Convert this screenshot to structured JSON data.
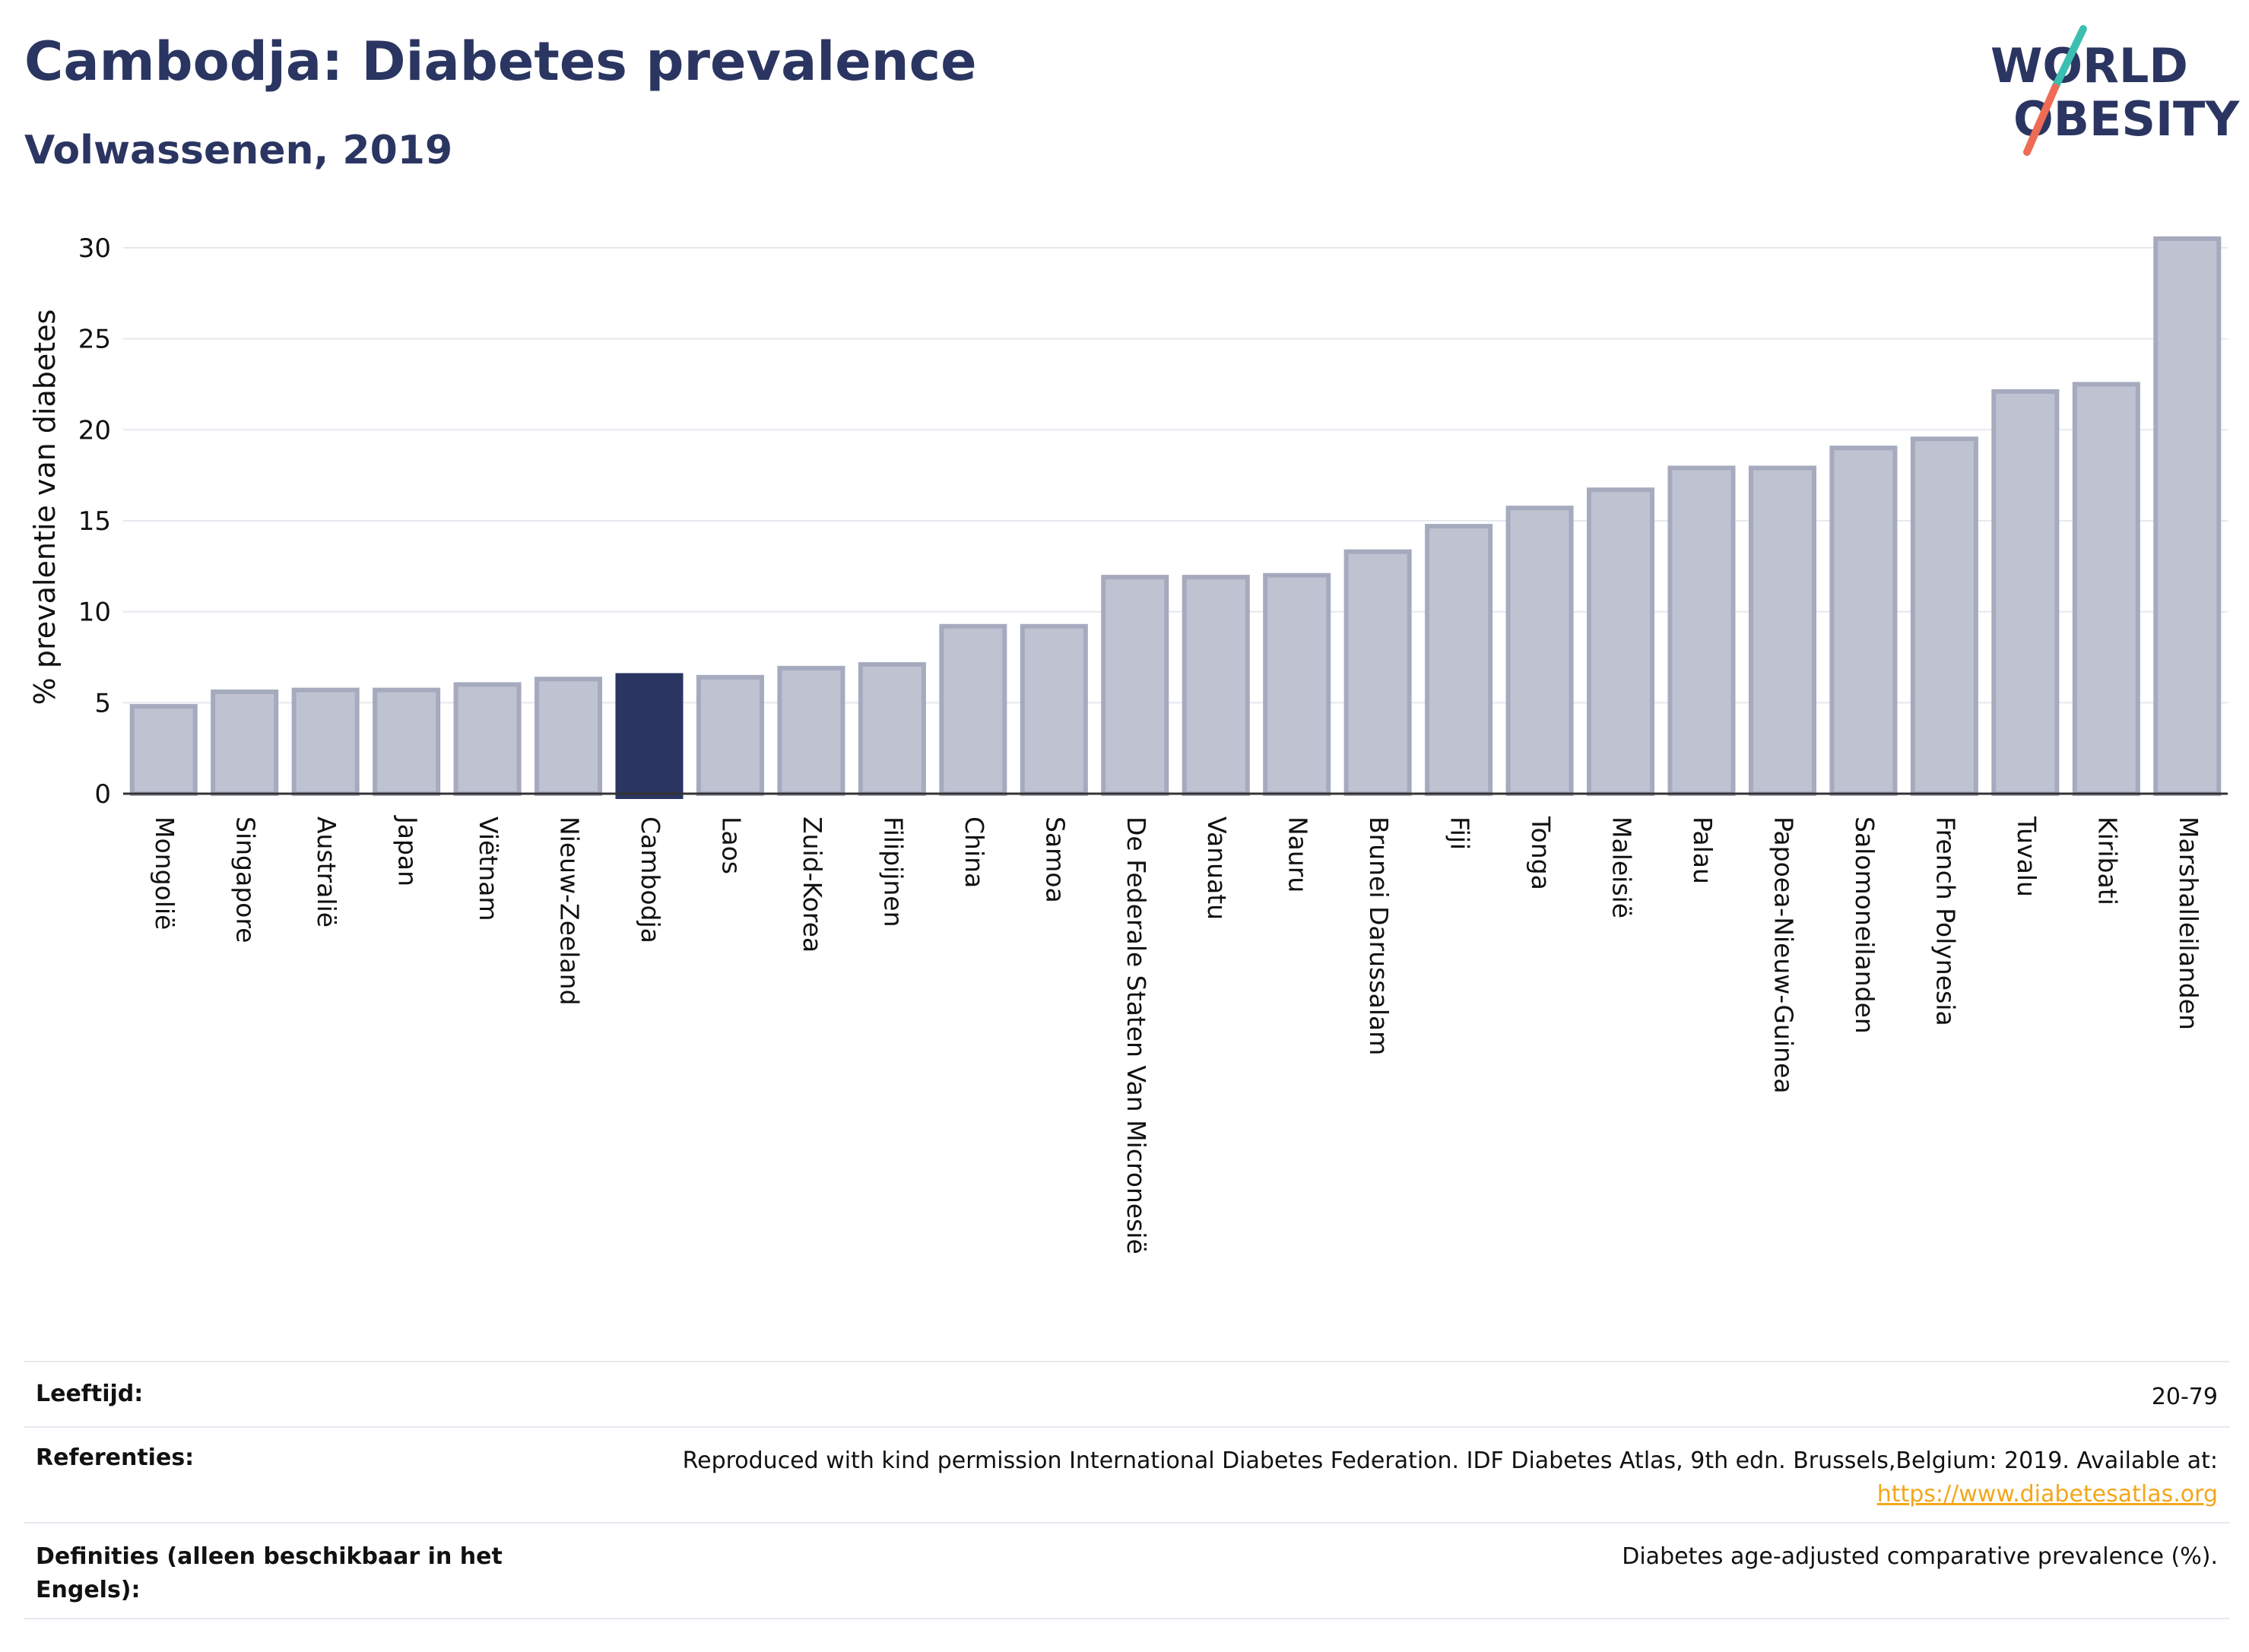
{
  "header": {
    "title": "Cambodja: Diabetes prevalence",
    "subtitle": "Volwassenen, 2019",
    "logo_line1": "WORLD",
    "logo_line2": "OBESITY"
  },
  "colors": {
    "bar_fill": "#bfc2d0",
    "bar_stroke": "#a6aabe",
    "highlight": "#2b3561",
    "grid": "#e6e8ef",
    "axis": "#333333",
    "logo_teal": "#3bbfb1",
    "logo_red": "#ee6c55"
  },
  "chart_data": {
    "type": "bar",
    "ylabel": "% prevalentie van diabetes",
    "ylim": [
      0,
      31.5
    ],
    "yticks": [
      0,
      5,
      10,
      15,
      20,
      25,
      30
    ],
    "grid": true,
    "highlight": "Cambodja",
    "categories": [
      "Mongolië",
      "Singapore",
      "Australië",
      "Japan",
      "Viëtnam",
      "Nieuw-Zeeland",
      "Cambodja",
      "Laos",
      "Zuid-Korea",
      "Filipijnen",
      "China",
      "Samoa",
      "De Federale Staten Van Micronesië",
      "Vanuatu",
      "Nauru",
      "Brunei Darussalam",
      "Fiji",
      "Tonga",
      "Maleisië",
      "Palau",
      "Papoea-Nieuw-Guinea",
      "Salomoneilanden",
      "French Polynesia",
      "Tuvalu",
      "Kiribati",
      "Marshalleilanden"
    ],
    "values": [
      4.8,
      5.6,
      5.7,
      5.7,
      6.0,
      6.3,
      6.5,
      6.4,
      6.9,
      7.1,
      9.2,
      9.2,
      11.9,
      11.9,
      12.0,
      13.3,
      14.7,
      15.7,
      16.7,
      17.9,
      17.9,
      19.0,
      19.5,
      22.1,
      22.5,
      30.5
    ]
  },
  "footer": {
    "age_label": "Leeftijd:",
    "age_value": "20-79",
    "ref_label": "Referenties:",
    "ref_text": "Reproduced with kind permission International Diabetes Federation. IDF Diabetes Atlas, 9th edn. Brussels,Belgium: 2019. Available at:",
    "ref_link": "https://www.diabetesatlas.org",
    "def_label": "Definities (alleen beschikbaar in het Engels):",
    "def_value": "Diabetes age-adjusted comparative prevalence (%)."
  }
}
